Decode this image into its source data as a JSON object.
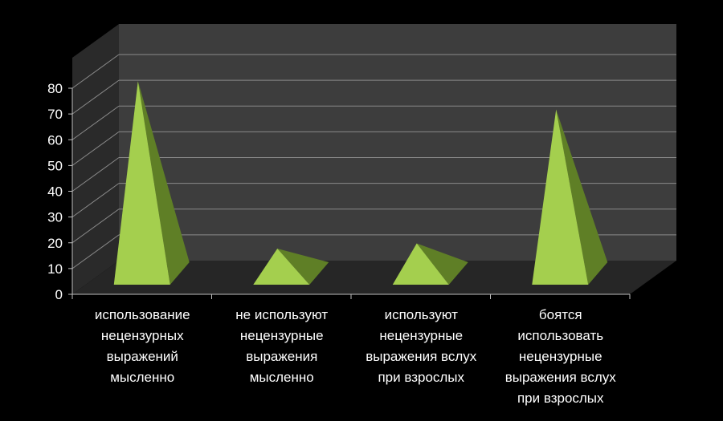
{
  "chart_data": {
    "type": "bar",
    "style": "3d-pyramid",
    "categories": [
      "использование\nнецензурных\nвыражений\nмысленно",
      "не используют\nнецензурные\nвыражения\nмысленно",
      "используют\nнецензурные\nвыражения вслух\nпри взрослых",
      "боятся\nиспользовать\nнецензурные\nвыражения вслух\nпри  взрослых"
    ],
    "values": [
      75,
      10,
      12,
      64
    ],
    "ylim": [
      0,
      80
    ],
    "yticks": [
      0,
      10,
      20,
      30,
      40,
      50,
      60,
      70,
      80
    ],
    "grid": true,
    "legend": false,
    "colors": {
      "background": "#000000",
      "wall": "#3d3d3d",
      "side_wall": "#2a2a2a",
      "floor": "#262626",
      "grid": "#8a8a8a",
      "pyramid_light": "#a4cf4e",
      "pyramid_dark": "#5f7f26"
    }
  }
}
